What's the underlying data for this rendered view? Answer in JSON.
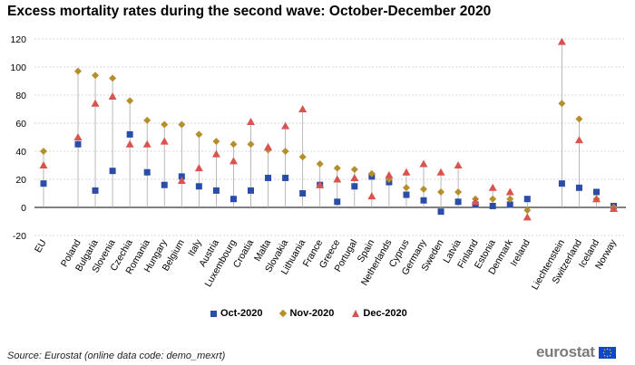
{
  "title": "Excess mortality rates during the second wave: October-December 2020",
  "source": "Source: Eurostat (online data code: demo_mexrt)",
  "logo_text": "eurostat",
  "chart_data": {
    "type": "scatter",
    "title": "Excess mortality rates during the second wave: October-December 2020",
    "ylim": [
      -20,
      120
    ],
    "yticks": [
      -20,
      0,
      20,
      40,
      60,
      80,
      100,
      120
    ],
    "grid": true,
    "legend_position": "bottom",
    "categories": [
      "EU",
      "Poland",
      "Bulgaria",
      "Slovenia",
      "Czechia",
      "Romania",
      "Hungary",
      "Belgium",
      "Italy",
      "Austria",
      "Luxembourg",
      "Croatia",
      "Malta",
      "Slovakia",
      "Lithuania",
      "France",
      "Greece",
      "Portugal",
      "Spain",
      "Netherlands",
      "Cyprus",
      "Germany",
      "Sweden",
      "Latvia",
      "Finland",
      "Estonia",
      "Denmark",
      "Ireland",
      "Liechtenstein",
      "Switzerland",
      "Iceland",
      "Norway"
    ],
    "series": [
      {
        "name": "Oct-2020",
        "marker": "square",
        "color": "#2a4ea8",
        "values": [
          17,
          45,
          12,
          26,
          52,
          25,
          16,
          22,
          15,
          12,
          6,
          12,
          21,
          21,
          10,
          16,
          4,
          15,
          22,
          18,
          9,
          5,
          -3,
          4,
          2,
          1,
          2,
          6,
          17,
          14,
          11,
          1
        ]
      },
      {
        "name": "Nov-2020",
        "marker": "diamond",
        "color": "#b58f2c",
        "values": [
          40,
          97,
          94,
          92,
          76,
          62,
          59,
          59,
          52,
          47,
          45,
          45,
          41,
          40,
          36,
          31,
          28,
          27,
          24,
          20,
          14,
          13,
          11,
          11,
          6,
          6,
          6,
          -2,
          74,
          63,
          6,
          0
        ]
      },
      {
        "name": "Dec-2020",
        "marker": "triangle",
        "color": "#d9534f",
        "values": [
          30,
          50,
          74,
          79,
          45,
          45,
          47,
          19,
          28,
          38,
          33,
          61,
          43,
          58,
          70,
          16,
          20,
          21,
          8,
          23,
          25,
          31,
          25,
          30,
          4,
          14,
          11,
          -7,
          118,
          48,
          6,
          -1
        ]
      }
    ]
  }
}
